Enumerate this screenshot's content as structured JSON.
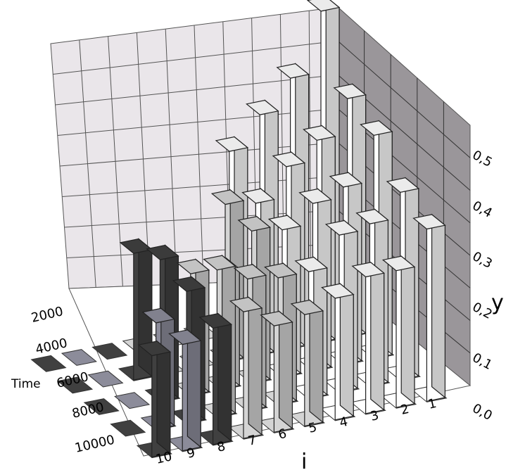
{
  "chart_data": {
    "type": "bar3d",
    "xlabel": "i",
    "ylabel": "Time",
    "zlabel": "y",
    "i_categories": [
      "1",
      "2",
      "3",
      "4",
      "5",
      "6",
      "7",
      "8",
      "9",
      "10"
    ],
    "time_categories": [
      "2000",
      "4000",
      "6000",
      "8000",
      "10000"
    ],
    "z_ticks": [
      "0,0",
      "0,1",
      "0,2",
      "0,3",
      "0,4",
      "0,5"
    ],
    "zlim": [
      0,
      0.6
    ],
    "values": [
      [
        0.6,
        0.48,
        0.42,
        0.36,
        0.02,
        0.0,
        0.0,
        0.02,
        0.02,
        0.03
      ],
      [
        0.47,
        0.4,
        0.36,
        0.3,
        0.31,
        0.02,
        0.0,
        0.25,
        0.02,
        0.03
      ],
      [
        0.44,
        0.35,
        0.33,
        0.29,
        0.3,
        0.23,
        0.24,
        0.28,
        0.02,
        0.03
      ],
      [
        0.37,
        0.32,
        0.31,
        0.25,
        0.25,
        0.26,
        0.29,
        0.26,
        0.21,
        0.03
      ],
      [
        0.34,
        0.27,
        0.27,
        0.24,
        0.22,
        0.21,
        0.25,
        0.23,
        0.21,
        0.2
      ]
    ],
    "colors": {
      "bar_white": "#ffffff",
      "bar_light": "#d4d4d4",
      "bar_mid": "#8c8c9a",
      "bar_dark": "#404040",
      "wall_back": "#eae6ea",
      "wall_side": "#9a969a"
    },
    "grid": true
  }
}
